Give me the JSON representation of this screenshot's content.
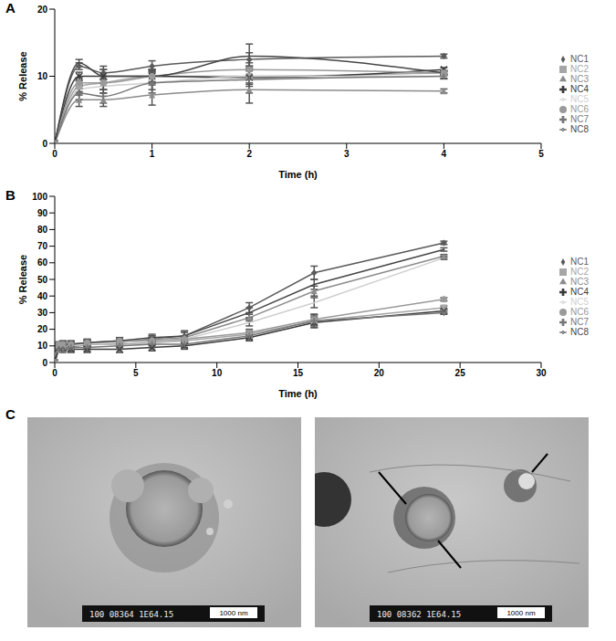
{
  "chart_data": [
    {
      "type": "line",
      "title": "A",
      "x_label": "Time (h)",
      "y_label": "% Release",
      "xlim": [
        0,
        5
      ],
      "xticks": [
        0,
        1,
        2,
        3,
        4,
        5
      ],
      "ylim": [
        0,
        20
      ],
      "yticks": [
        0,
        10,
        20
      ],
      "grid": false,
      "legend": "right",
      "line_style": "smooth",
      "x": [
        0,
        0.25,
        0.5,
        1,
        2,
        4
      ],
      "series": [
        {
          "name": "NC1",
          "color": "#5a5a5a",
          "marker": "diamond",
          "values": [
            0,
            11.5,
            10.5,
            11.5,
            12.5,
            13
          ],
          "errors": [
            0,
            0.5,
            1,
            0.8,
            1,
            0.3
          ]
        },
        {
          "name": "NC2",
          "color": "#a6a6a6",
          "marker": "square",
          "values": [
            0,
            8.5,
            9,
            10,
            10,
            10.5
          ],
          "errors": [
            0,
            0.8,
            1,
            1,
            1.5,
            0.4
          ]
        },
        {
          "name": "NC3",
          "color": "#8c8c8c",
          "marker": "triangle",
          "values": [
            0,
            6.5,
            6.5,
            7.2,
            8,
            7.8
          ],
          "errors": [
            0,
            1,
            1,
            1.5,
            2,
            0.3
          ]
        },
        {
          "name": "NC4",
          "color": "#3a3a3a",
          "marker": "x",
          "values": [
            0,
            10,
            10,
            10,
            9.8,
            11
          ],
          "errors": [
            0,
            0.6,
            1,
            1,
            1,
            0.3
          ]
        },
        {
          "name": "NC5",
          "color": "#cfcfcf",
          "marker": "none",
          "values": [
            0,
            8,
            8.5,
            9,
            10,
            10
          ],
          "errors": [
            0,
            0.8,
            1,
            1,
            1,
            0.3
          ]
        },
        {
          "name": "NC6",
          "color": "#9a9a9a",
          "marker": "circle",
          "values": [
            0,
            9,
            9,
            10,
            11,
            10.5
          ],
          "errors": [
            0,
            0.8,
            1,
            0.8,
            1,
            0.3
          ]
        },
        {
          "name": "NC7",
          "color": "#777777",
          "marker": "plus",
          "values": [
            0,
            7.5,
            7,
            9,
            9.5,
            10
          ],
          "errors": [
            0,
            1,
            1,
            1.5,
            2,
            0.4
          ]
        },
        {
          "name": "NC8",
          "color": "#464646",
          "marker": "none",
          "values": [
            0,
            12,
            10,
            10,
            13,
            10.5
          ],
          "errors": [
            0,
            0.5,
            1,
            1,
            1.8,
            0.3
          ]
        }
      ]
    },
    {
      "type": "line",
      "title": "B",
      "x_label": "Time (h)",
      "y_label": "% Release",
      "xlim": [
        0,
        30
      ],
      "xticks": [
        0,
        5,
        10,
        15,
        20,
        25,
        30
      ],
      "ylim": [
        0,
        100
      ],
      "yticks": [
        0,
        10,
        20,
        30,
        40,
        50,
        60,
        70,
        80,
        90,
        100
      ],
      "grid": false,
      "legend": "right",
      "line_style": "solid",
      "x": [
        0,
        0.25,
        0.5,
        1,
        2,
        4,
        6,
        8,
        12,
        16,
        24
      ],
      "series": [
        {
          "name": "NC1",
          "color": "#5a5a5a",
          "marker": "diamond",
          "values": [
            0,
            10,
            10,
            10,
            11,
            12,
            14,
            16,
            33,
            54,
            72
          ],
          "errors": [
            0,
            1.5,
            2,
            2,
            2,
            2,
            2,
            3,
            3,
            4,
            1
          ]
        },
        {
          "name": "NC2",
          "color": "#a6a6a6",
          "marker": "square",
          "values": [
            0,
            10,
            10,
            10,
            11,
            11,
            12,
            13,
            17,
            25,
            33
          ],
          "errors": [
            0,
            1.5,
            2,
            2,
            2,
            2,
            2,
            2,
            2,
            3,
            1
          ]
        },
        {
          "name": "NC3",
          "color": "#8c8c8c",
          "marker": "triangle",
          "values": [
            0,
            8,
            9,
            9,
            11,
            12,
            14,
            15,
            27,
            43,
            64
          ],
          "errors": [
            0,
            1.5,
            2,
            2,
            2,
            2,
            2,
            3,
            2,
            3,
            1
          ]
        },
        {
          "name": "NC4",
          "color": "#3a3a3a",
          "marker": "x",
          "values": [
            0,
            9,
            9,
            8,
            8,
            8,
            9,
            10,
            15,
            24,
            31
          ],
          "errors": [
            0,
            1.5,
            2,
            2,
            2,
            2,
            2,
            2,
            2,
            3,
            1
          ]
        },
        {
          "name": "NC5",
          "color": "#cfcfcf",
          "marker": "none",
          "values": [
            0,
            9,
            9,
            10,
            11,
            12,
            13,
            14,
            24,
            36,
            63
          ],
          "errors": [
            0,
            1.5,
            2,
            2,
            2,
            2,
            2,
            2,
            2,
            3,
            1
          ]
        },
        {
          "name": "NC6",
          "color": "#9a9a9a",
          "marker": "circle",
          "values": [
            0,
            11,
            11,
            11,
            12,
            13,
            13,
            14,
            18,
            26,
            38
          ],
          "errors": [
            0,
            1.5,
            2,
            2,
            2,
            2,
            2,
            2,
            2,
            3,
            1
          ]
        },
        {
          "name": "NC7",
          "color": "#777777",
          "marker": "plus",
          "values": [
            0,
            8,
            8,
            9,
            9,
            10,
            11,
            11,
            16,
            25,
            30
          ],
          "errors": [
            0,
            1.5,
            2,
            2,
            2,
            2,
            2,
            2,
            2,
            4,
            1
          ]
        },
        {
          "name": "NC8",
          "color": "#464646",
          "marker": "none",
          "values": [
            0,
            10,
            11,
            11,
            12,
            13,
            15,
            16,
            30,
            47,
            68
          ],
          "errors": [
            0,
            1.5,
            2,
            2,
            2,
            2,
            2,
            3,
            3,
            3,
            1
          ]
        }
      ]
    }
  ],
  "panel_c": {
    "label": "C",
    "micrographs": [
      {
        "scale_bar": "1000 nm",
        "footer": "100 08364 1E64.15"
      },
      {
        "scale_bar": "1000 nm",
        "footer": "100 08362 1E64.15"
      }
    ]
  }
}
